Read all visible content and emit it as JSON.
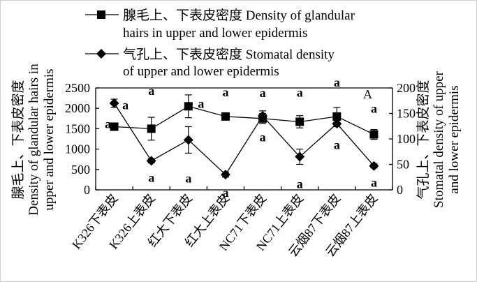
{
  "chart_data": {
    "type": "line",
    "panel_label": "A",
    "categories": [
      "K326下表皮",
      "K326上表皮",
      "红大下表皮",
      "红大上表皮",
      "NC71下表皮",
      "NC71上表皮",
      "云烟87下表皮",
      "云烟87上表皮"
    ],
    "series": [
      {
        "name_line1": "腺毛上、下表皮密度 Density of glandular",
        "name_line2": "hairs in upper and lower epidermis",
        "marker": "square",
        "axis": "left",
        "values": [
          1550,
          1500,
          2050,
          1800,
          1750,
          1670,
          1800,
          1360
        ],
        "errors": [
          90,
          280,
          280,
          80,
          120,
          150,
          220,
          120
        ],
        "sig": [
          "a",
          "a",
          "a",
          "a",
          "a",
          "a",
          "a",
          "a"
        ]
      },
      {
        "name_line1": "气孔上、下表皮密度 Stomatal density",
        "name_line2": "of upper and lower epidermis",
        "marker": "diamond",
        "axis": "right",
        "values": [
          170,
          57,
          98,
          30,
          145,
          65,
          130,
          47
        ],
        "errors": [
          8,
          4,
          26,
          5,
          10,
          15,
          6,
          4
        ],
        "sig": [
          "a",
          "a",
          "a",
          "a",
          "a",
          "a",
          "a",
          "a"
        ]
      }
    ],
    "y_left": {
      "label_line1": "腺毛上、下表皮密度",
      "label_line2": "Density of glandular hairs in",
      "label_line3": "upper and lower epidermis",
      "ylim": [
        0,
        2500
      ],
      "ticks": [
        "0",
        "500",
        "1000",
        "1500",
        "2000",
        "2500"
      ]
    },
    "y_right": {
      "label_line1": "气孔上、下表皮密度",
      "label_line2": "Stomatal density of upper",
      "label_line3": "and lower epidermis",
      "ylim": [
        0,
        200
      ],
      "ticks": [
        "0",
        "50",
        "100",
        "150",
        "200"
      ]
    },
    "grid": false,
    "legend_position": "top"
  }
}
